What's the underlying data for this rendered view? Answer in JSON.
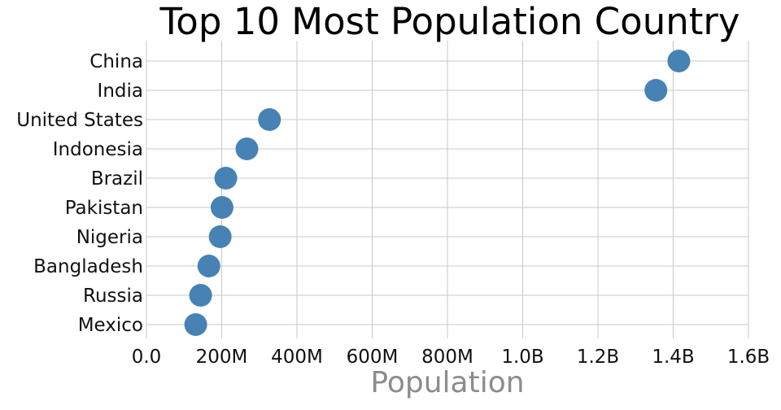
{
  "chart_data": {
    "type": "scatter",
    "title": "Top 10 Most Population Country",
    "xlabel": "Population",
    "ylabel": "",
    "categories": [
      "China",
      "India",
      "United States",
      "Indonesia",
      "Brazil",
      "Pakistan",
      "Nigeria",
      "Bangladesh",
      "Russia",
      "Mexico"
    ],
    "values": [
      1415000000,
      1354000000,
      327000000,
      267000000,
      211000000,
      201000000,
      196000000,
      166000000,
      144000000,
      131000000
    ],
    "xlim": [
      0,
      1600000000
    ],
    "x_ticks": [
      0,
      200000000,
      400000000,
      600000000,
      800000000,
      1000000000,
      1200000000,
      1400000000,
      1600000000
    ],
    "x_tick_labels": [
      "0.0",
      "200M",
      "400M",
      "600M",
      "800M",
      "1.0B",
      "1.2B",
      "1.4B",
      "1.6B"
    ],
    "grid": true,
    "legend": "none",
    "colors": {
      "point": "#4682b4",
      "grid": "#c8c8c8",
      "axis_title": "#8c8c8c",
      "text": "#111111"
    }
  }
}
